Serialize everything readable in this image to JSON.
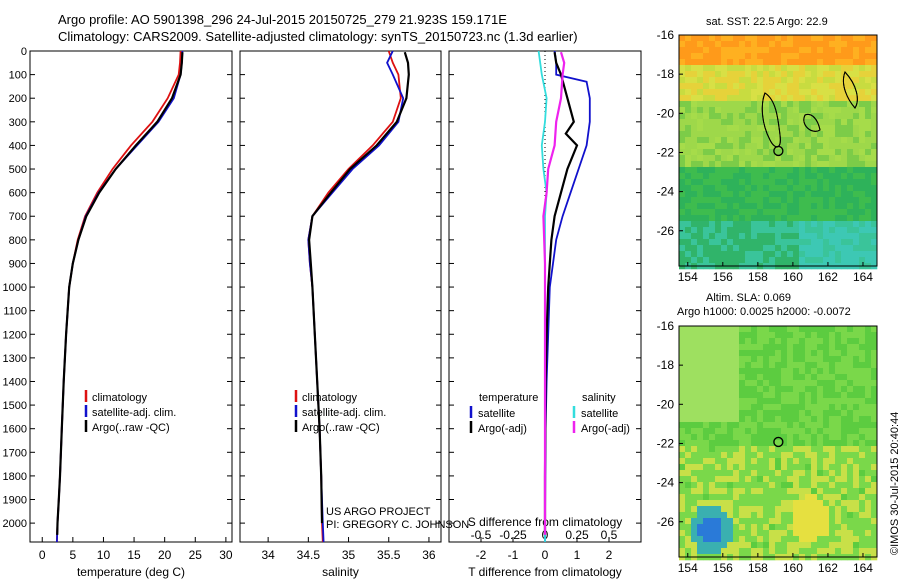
{
  "header": {
    "line1": "Argo profile: AO 5901398_296 24-Jul-2015 20150725_279 21.923S 159.171E",
    "line2": "Climatology: CARS2009. Satellite-adjusted climatology: synTS_20150723.nc (1.3d earlier)"
  },
  "colors": {
    "climatology": "#dd1111",
    "satellite": "#1111cc",
    "argo": "#000000",
    "sal_satellite": "#33dddd",
    "sal_argo": "#ee22ee"
  },
  "credits": {
    "project": "US ARGO PROJECT",
    "pi": "PI: GREGORY C. JOHNSON",
    "timestamp": "©IMOS 30-Jul-2015 20:40:44"
  },
  "map_titles": {
    "sst": "sat. SST: 22.5 Argo: 22.9",
    "sla": "Altim. SLA: 0.069",
    "sla_sub": "Argo h1000: 0.0025 h2000: -0.0072"
  },
  "chart_data": [
    {
      "type": "line",
      "id": "temperature",
      "xlabel": "temperature (deg C)",
      "ylabel": "",
      "xlim": [
        -2,
        31
      ],
      "ylim": [
        2080,
        0
      ],
      "xticks": [
        0,
        5,
        10,
        15,
        20,
        25,
        30
      ],
      "yticks": [
        0,
        100,
        200,
        300,
        400,
        500,
        600,
        700,
        800,
        900,
        1000,
        1100,
        1200,
        1300,
        1400,
        1500,
        1600,
        1700,
        1800,
        1900,
        2000
      ],
      "legend": [
        "climatology",
        "satellite-adj. clim.",
        "Argo(..raw -QC)"
      ],
      "legend_position": "lower-left",
      "series": [
        {
          "name": "climatology",
          "color_key": "climatology",
          "x": [
            22.6,
            22.5,
            22.3,
            20.5,
            18.0,
            14.5,
            11.5,
            9.0,
            7.0,
            5.8,
            5.0,
            4.4,
            3.9,
            3.5,
            3.2,
            2.9,
            2.7,
            2.5,
            2.4
          ],
          "y": [
            0,
            50,
            100,
            200,
            300,
            400,
            500,
            600,
            700,
            800,
            900,
            1000,
            1200,
            1400,
            1600,
            1800,
            1900,
            2000,
            2080
          ]
        },
        {
          "name": "satellite-adj. clim.",
          "color_key": "satellite",
          "x": [
            22.9,
            22.8,
            22.6,
            21.5,
            19.0,
            15.5,
            12.0,
            9.2,
            7.1,
            5.9,
            5.0,
            4.4,
            3.9,
            3.5,
            3.2,
            2.9,
            2.7,
            2.5,
            2.4
          ],
          "y": [
            0,
            50,
            100,
            200,
            300,
            400,
            500,
            600,
            700,
            800,
            900,
            1000,
            1200,
            1400,
            1600,
            1800,
            1900,
            2000,
            2080
          ]
        },
        {
          "name": "Argo(..raw -QC)",
          "color_key": "argo",
          "x": [
            22.9,
            22.8,
            22.6,
            21.2,
            18.8,
            15.3,
            12.0,
            9.3,
            7.2,
            5.9,
            5.0,
            4.4,
            3.9,
            3.5,
            3.2,
            2.9,
            2.7,
            2.5,
            2.45
          ],
          "y": [
            5,
            50,
            100,
            200,
            300,
            400,
            500,
            600,
            700,
            800,
            900,
            1000,
            1200,
            1400,
            1600,
            1800,
            1900,
            2000,
            2050
          ]
        }
      ]
    },
    {
      "type": "line",
      "id": "salinity",
      "xlabel": "salinity",
      "ylabel": "",
      "xlim": [
        33.65,
        36.15
      ],
      "ylim": [
        2080,
        0
      ],
      "xticks": [
        34,
        34.5,
        35,
        35.5,
        36
      ],
      "legend": [
        "climatology",
        "satellite-adj. clim.",
        "Argo(..raw -QC)"
      ],
      "legend_position": "lower-left",
      "series": [
        {
          "name": "climatology",
          "color_key": "climatology",
          "x": [
            35.5,
            35.55,
            35.62,
            35.65,
            35.55,
            35.3,
            35.0,
            34.75,
            34.55,
            34.5,
            34.52,
            34.55,
            34.58,
            34.61,
            34.64,
            34.66,
            34.67,
            34.68
          ],
          "y": [
            0,
            50,
            100,
            200,
            300,
            400,
            500,
            600,
            700,
            800,
            900,
            1000,
            1200,
            1400,
            1600,
            1800,
            2000,
            2080
          ]
        },
        {
          "name": "satellite-adj. clim.",
          "color_key": "satellite",
          "x": [
            35.55,
            35.48,
            35.55,
            35.68,
            35.62,
            35.38,
            35.05,
            34.8,
            34.55,
            34.5,
            34.52,
            34.55,
            34.58,
            34.61,
            34.64,
            34.66,
            34.68,
            34.69
          ],
          "y": [
            0,
            50,
            100,
            200,
            300,
            400,
            500,
            600,
            700,
            800,
            900,
            1000,
            1200,
            1400,
            1600,
            1800,
            2000,
            2080
          ]
        },
        {
          "name": "Argo(..raw -QC)",
          "color_key": "argo",
          "x": [
            35.7,
            35.74,
            35.75,
            35.72,
            35.6,
            35.35,
            35.02,
            34.78,
            34.55,
            34.51,
            34.53,
            34.55,
            34.58,
            34.61,
            34.64,
            34.66,
            34.67
          ],
          "y": [
            5,
            50,
            100,
            200,
            300,
            400,
            500,
            600,
            700,
            800,
            900,
            1000,
            1200,
            1400,
            1600,
            1800,
            2000
          ]
        }
      ]
    },
    {
      "type": "line",
      "id": "difference",
      "xlabel": "T difference from climatology",
      "xlabel_top": "S difference from climatology",
      "ylabel": "",
      "xlim": [
        -3.0,
        3.0
      ],
      "ylim": [
        2080,
        0
      ],
      "xticks": [
        -2,
        -1,
        0,
        1,
        2
      ],
      "xticks_top": [
        "-0.5",
        "-0.25",
        "0",
        "0.25",
        "0.5"
      ],
      "legend_left_title": "temperature",
      "legend_right_title": "salinity",
      "legend": [
        "satellite",
        "Argo(-adj)",
        "satellite",
        "Argo(-adj)"
      ],
      "legend_position": "lower",
      "series": [
        {
          "name": "satellite",
          "group": "temperature",
          "color_key": "satellite",
          "x": [
            0.3,
            0.35,
            0.35,
            1.3,
            1.4,
            1.4,
            1.3,
            1.05,
            0.8,
            0.55,
            0.35,
            0.25,
            0.15,
            0.1,
            0.05,
            0.02,
            0.01,
            0.0,
            0.0
          ],
          "y": [
            0,
            50,
            100,
            130,
            200,
            300,
            400,
            500,
            600,
            700,
            800,
            900,
            1000,
            1200,
            1400,
            1600,
            1800,
            2000,
            2080
          ]
        },
        {
          "name": "Argo(-adj)",
          "group": "temperature",
          "color_key": "argo",
          "x": [
            0.3,
            0.35,
            0.5,
            0.7,
            0.9,
            0.65,
            1.0,
            0.7,
            0.5,
            0.3,
            0.2,
            0.1,
            0.05,
            0.02,
            0.0,
            0.0
          ],
          "y": [
            5,
            50,
            100,
            200,
            300,
            350,
            400,
            500,
            600,
            700,
            800,
            1000,
            1200,
            1400,
            1800,
            2050
          ]
        },
        {
          "name": "satellite",
          "group": "salinity",
          "color_key": "sal_satellite",
          "x": [
            -0.2,
            -0.15,
            -0.1,
            0.05,
            0.0,
            -0.1,
            -0.05,
            0.05,
            0.0,
            0.0,
            0.0,
            0.0,
            0.0
          ],
          "y": [
            0,
            50,
            100,
            200,
            300,
            400,
            500,
            600,
            700,
            900,
            1200,
            1600,
            2080
          ]
        },
        {
          "name": "Argo(-adj)",
          "group": "salinity",
          "color_key": "sal_argo",
          "x": [
            0.5,
            0.6,
            0.55,
            0.5,
            0.35,
            0.3,
            0.1,
            0.05,
            -0.05,
            0.0,
            0.0,
            0.0
          ],
          "y": [
            5,
            50,
            100,
            200,
            300,
            400,
            500,
            600,
            700,
            900,
            1400,
            2050
          ]
        }
      ]
    },
    {
      "type": "heatmap",
      "id": "sst_map",
      "title": "sat. SST: 22.5 Argo: 22.9",
      "xlim": [
        153.5,
        164.8
      ],
      "ylim": [
        -27.8,
        -16
      ],
      "xticks": [
        154,
        156,
        158,
        160,
        162,
        164
      ],
      "yticks": [
        -16,
        -18,
        -20,
        -22,
        -24,
        -26
      ],
      "marker": {
        "lon": 159.171,
        "lat": -21.923
      }
    },
    {
      "type": "heatmap",
      "id": "sla_map",
      "title": "Altim. SLA: 0.069",
      "subtitle": "Argo h1000: 0.0025 h2000: -0.0072",
      "xlim": [
        153.5,
        164.8
      ],
      "ylim": [
        -27.8,
        -16
      ],
      "xticks": [
        154,
        156,
        158,
        160,
        162,
        164
      ],
      "yticks": [
        -16,
        -18,
        -20,
        -22,
        -24,
        -26
      ],
      "marker": {
        "lon": 159.171,
        "lat": -21.923
      }
    }
  ]
}
